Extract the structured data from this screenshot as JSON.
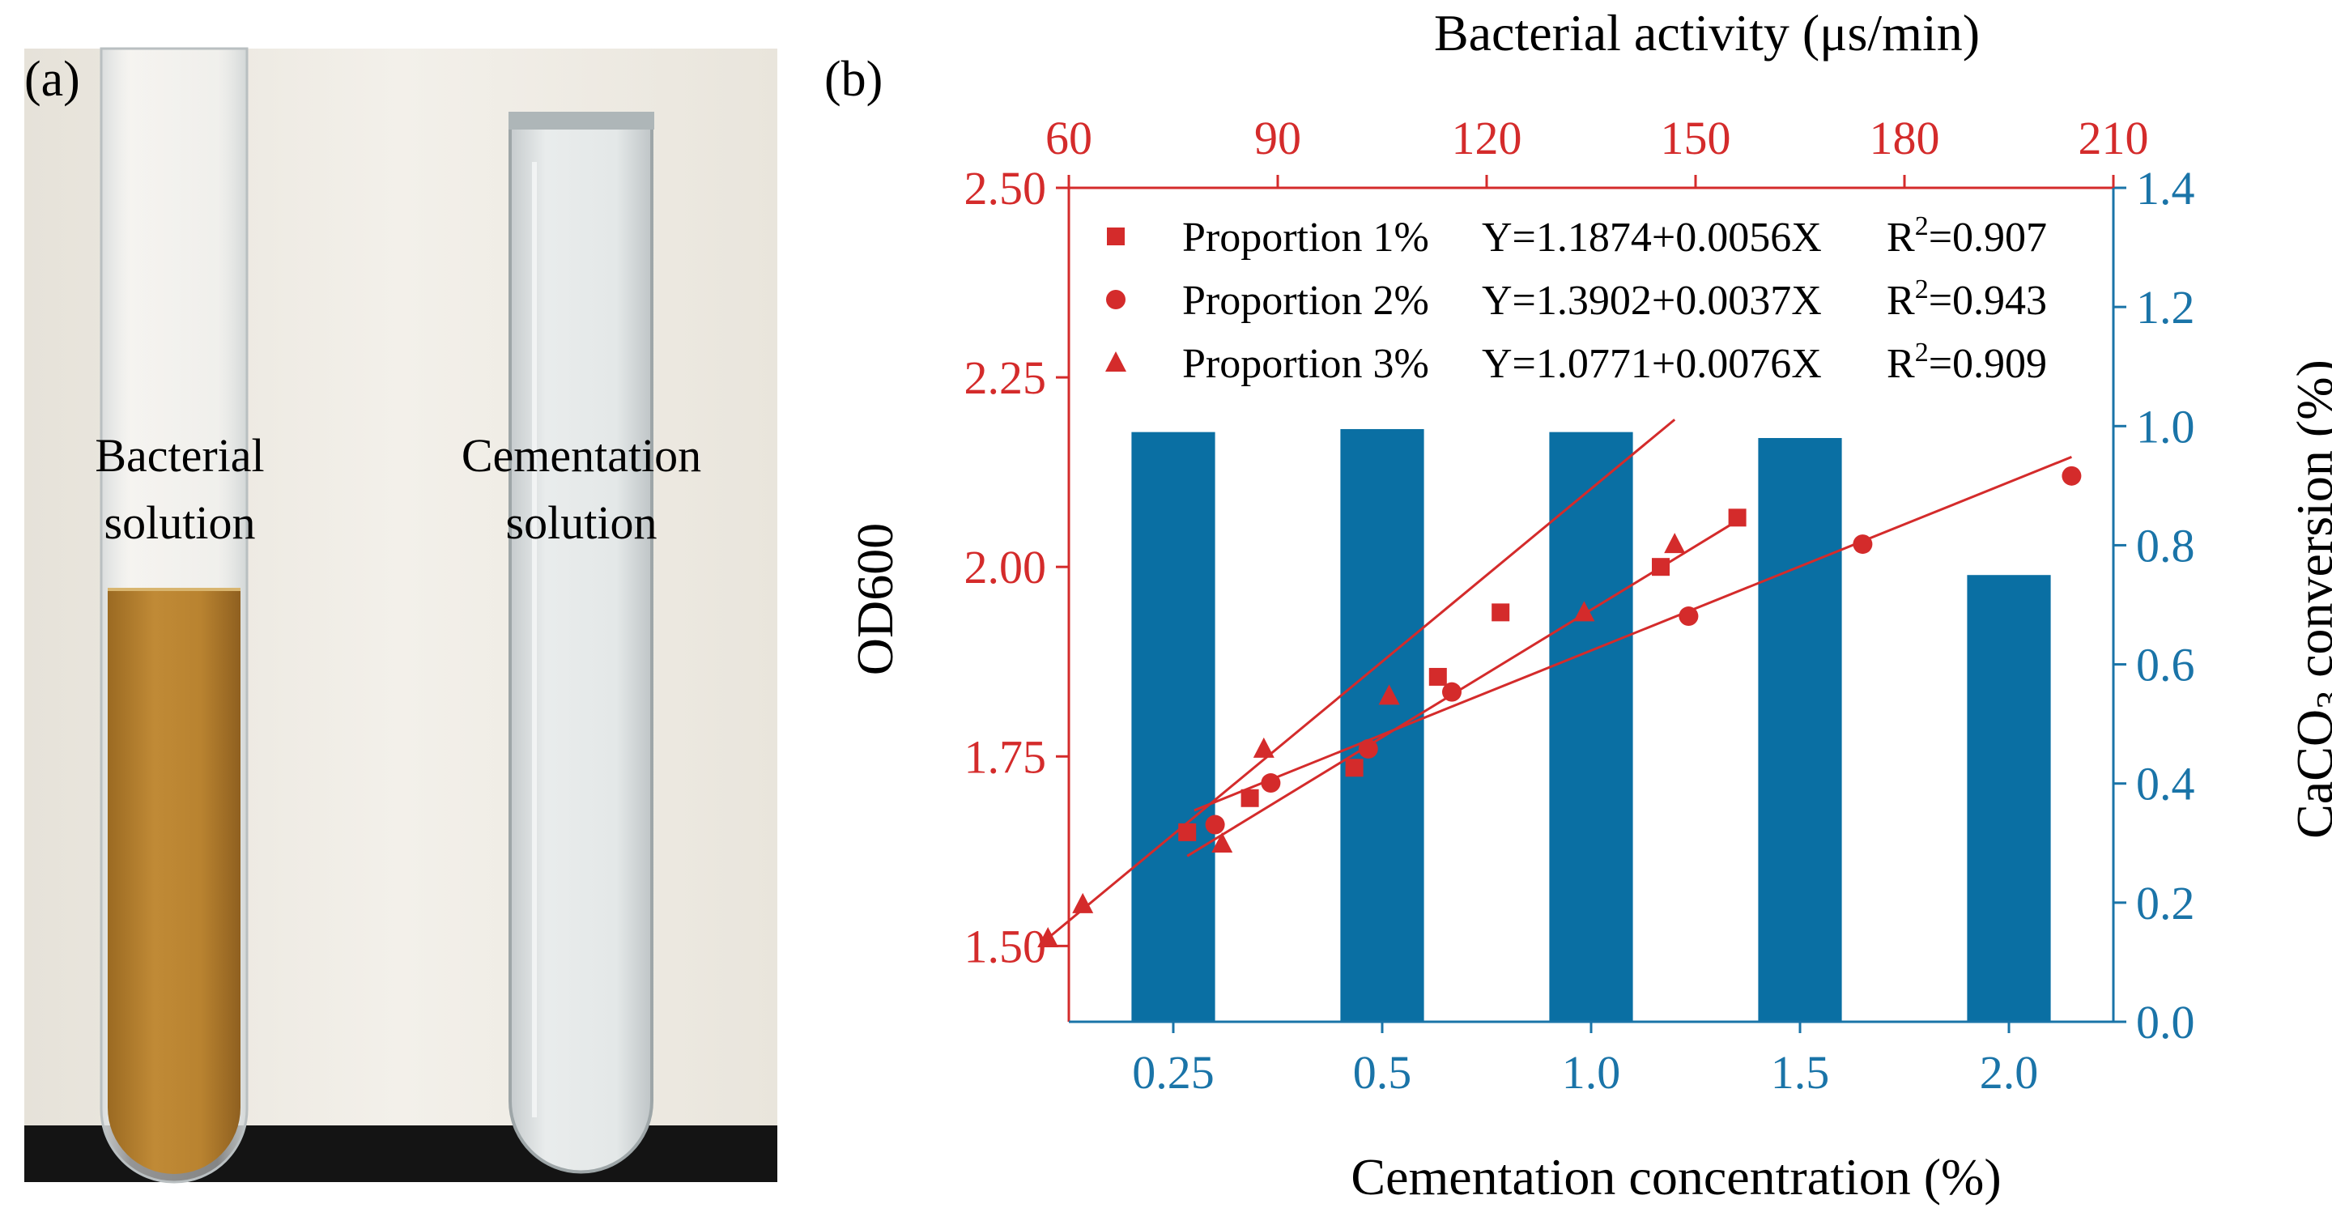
{
  "photo": {
    "panel_label": "(a)",
    "tube_left_label_lines": [
      "Bacterial",
      "solution"
    ],
    "tube_right_label_lines": [
      "Cementation",
      "solution"
    ],
    "colors": {
      "bacterial_liquid": "#b8822f",
      "background": "#eeeae2",
      "bench": "#111111"
    }
  },
  "chart_data": {
    "type": "scatter+bar",
    "panel_label": "(b)",
    "top_axis": {
      "label": "Bacterial activity (μs/min)",
      "min": 60,
      "max": 210,
      "ticks": [
        60,
        90,
        120,
        150,
        180,
        210
      ],
      "color": "#d42b2b"
    },
    "left_axis": {
      "label": "OD600",
      "min": 1.4,
      "max": 2.5,
      "ticks": [
        "1.50",
        "1.75",
        "2.00",
        "2.25",
        "2.50"
      ],
      "tick_values": [
        1.5,
        1.75,
        2.0,
        2.25,
        2.5
      ],
      "color": "#d42b2b"
    },
    "right_axis": {
      "label_prefix": "CaCO",
      "label_sub": "3",
      "label_suffix": " conversion (%)",
      "min": 0,
      "max": 1.4,
      "ticks": [
        "0.0",
        "0.2",
        "0.4",
        "0.6",
        "0.8",
        "1.0",
        "1.2",
        "1.4"
      ],
      "tick_values": [
        0,
        0.2,
        0.4,
        0.6,
        0.8,
        1.0,
        1.2,
        1.4
      ],
      "color": "#1a74a8"
    },
    "bottom_axis": {
      "label": "Cementation concentration (%)",
      "categories": [
        "0.25",
        "0.5",
        "1.0",
        "1.5",
        "2.0"
      ],
      "tick_label_color": "#1a74a8"
    },
    "bars": {
      "values": [
        0.99,
        0.995,
        0.99,
        0.98,
        0.75
      ],
      "color": "#0a6fa3"
    },
    "series": [
      {
        "name": "Proportion 1%",
        "marker": "square",
        "equation": "Y=1.1874+0.0056X",
        "r2_label": "R",
        "r2_value": "=0.907",
        "fit": {
          "intercept": 1.1874,
          "slope": 0.0056,
          "x_range": [
            77,
            156
          ]
        },
        "points": [
          [
            77,
            1.65
          ],
          [
            86,
            1.695
          ],
          [
            101,
            1.735
          ],
          [
            113,
            1.855
          ],
          [
            122,
            1.94
          ],
          [
            145,
            2.0
          ],
          [
            156,
            2.065
          ]
        ]
      },
      {
        "name": "Proportion 2%",
        "marker": "circle",
        "equation": "Y=1.3902+0.0037X",
        "r2_label": "R",
        "r2_value": "=0.943",
        "fit": {
          "intercept": 1.3902,
          "slope": 0.0037,
          "x_range": [
            78,
            204
          ]
        },
        "points": [
          [
            81,
            1.66
          ],
          [
            89,
            1.715
          ],
          [
            103,
            1.76
          ],
          [
            115,
            1.835
          ],
          [
            149,
            1.935
          ],
          [
            174,
            2.03
          ],
          [
            204,
            2.12
          ]
        ]
      },
      {
        "name": "Proportion 3%",
        "marker": "triangle",
        "equation": "Y=1.0771+0.0076X",
        "r2_label": "R",
        "r2_value": "=0.909",
        "fit": {
          "intercept": 1.0771,
          "slope": 0.0076,
          "x_range": [
            57,
            147
          ]
        },
        "points": [
          [
            57,
            1.51
          ],
          [
            62,
            1.555
          ],
          [
            82,
            1.635
          ],
          [
            88,
            1.76
          ],
          [
            106,
            1.83
          ],
          [
            134,
            1.94
          ],
          [
            147,
            2.03
          ]
        ]
      }
    ],
    "marker_color": "#d42b2b"
  }
}
